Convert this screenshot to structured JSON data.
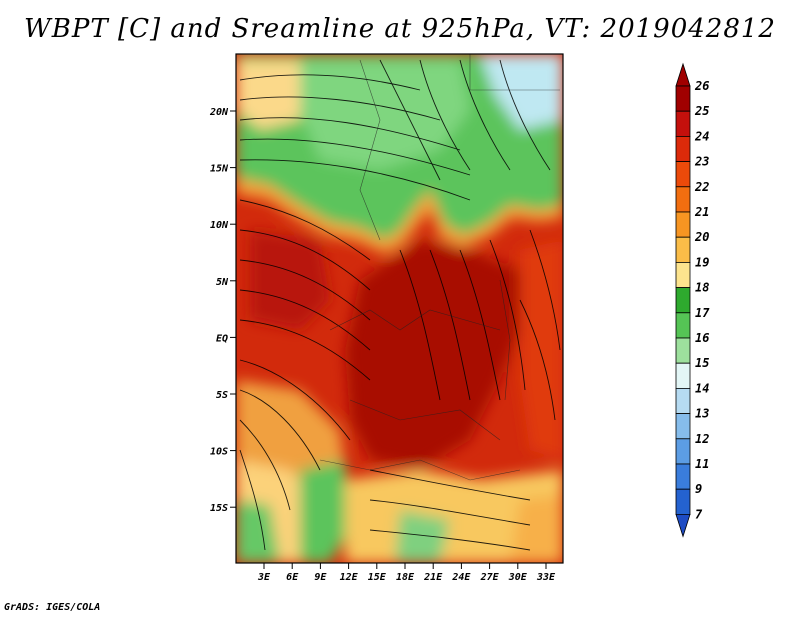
{
  "title": "WBPT [C] and Sreamline at 925hPa, VT: 2019042812",
  "credit": "GrADS: IGES/COLA",
  "map": {
    "lat_labels": [
      "20N",
      "15N",
      "10N",
      "5N",
      "EQ",
      "5S",
      "10S",
      "15S"
    ],
    "lon_labels": [
      "3E",
      "6E",
      "9E",
      "12E",
      "15E",
      "18E",
      "21E",
      "24E",
      "27E",
      "30E",
      "33E"
    ]
  },
  "colorbar": {
    "levels": [
      {
        "label": "26",
        "color": "#a00000"
      },
      {
        "label": "25",
        "color": "#c4100c"
      },
      {
        "label": "24",
        "color": "#dc2a0a"
      },
      {
        "label": "23",
        "color": "#ec4a0a"
      },
      {
        "label": "22",
        "color": "#f26e10"
      },
      {
        "label": "21",
        "color": "#f79522"
      },
      {
        "label": "20",
        "color": "#fbbd48"
      },
      {
        "label": "19",
        "color": "#fde48e"
      },
      {
        "label": "18",
        "color": "#2eaa2e"
      },
      {
        "label": "17",
        "color": "#55c455"
      },
      {
        "label": "16",
        "color": "#9de09d"
      },
      {
        "label": "15",
        "color": "#e3f6f6"
      },
      {
        "label": "14",
        "color": "#b6dbf2"
      },
      {
        "label": "13",
        "color": "#86bdec"
      },
      {
        "label": "12",
        "color": "#5c9de4"
      },
      {
        "label": "11",
        "color": "#3a7ddc"
      },
      {
        "label": "9",
        "color": "#2462d0"
      },
      {
        "label": "7",
        "color": "#1e4cc4"
      }
    ]
  }
}
